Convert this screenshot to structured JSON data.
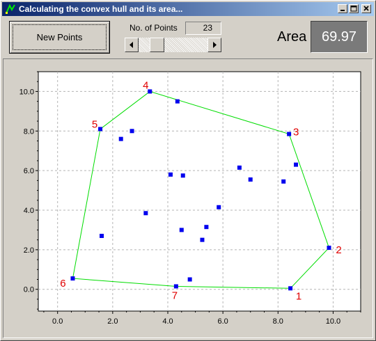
{
  "window": {
    "title": "Calculating the convex hull and its area...",
    "icons": [
      "app-icon",
      "minimize-icon",
      "maximize-icon",
      "close-icon"
    ]
  },
  "controls": {
    "new_points_label": "New Points",
    "npoints_label": "No. of Points",
    "npoints_value": "23",
    "slider_fraction": 0.2,
    "area_label": "Area",
    "area_value": "69.97"
  },
  "chart_data": {
    "type": "scatter",
    "xlim": [
      -0.7,
      11.0
    ],
    "ylim": [
      -1.1,
      11.0
    ],
    "x_ticks": [
      "0.0",
      "2.0",
      "4.0",
      "6.0",
      "8.0",
      "10.0"
    ],
    "x_tick_values": [
      0,
      2,
      4,
      6,
      8,
      10
    ],
    "y_ticks": [
      "0.0",
      "2.0",
      "4.0",
      "6.0",
      "8.0",
      "10.0"
    ],
    "y_tick_values": [
      0,
      2,
      4,
      6,
      8,
      10
    ],
    "grid": true,
    "point_color": "#0000ee",
    "hull_color": "#00dd00",
    "label_color": "#e00000",
    "points": [
      [
        8.45,
        0.05
      ],
      [
        9.85,
        2.1
      ],
      [
        8.4,
        7.85
      ],
      [
        3.35,
        10.0
      ],
      [
        1.55,
        8.1
      ],
      [
        0.55,
        0.55
      ],
      [
        4.3,
        0.15
      ],
      [
        4.35,
        9.5
      ],
      [
        2.7,
        8.0
      ],
      [
        2.3,
        7.6
      ],
      [
        4.1,
        5.8
      ],
      [
        4.55,
        5.75
      ],
      [
        6.6,
        6.15
      ],
      [
        7.0,
        5.55
      ],
      [
        8.2,
        5.45
      ],
      [
        8.65,
        6.3
      ],
      [
        5.85,
        4.15
      ],
      [
        5.4,
        3.15
      ],
      [
        4.5,
        3.0
      ],
      [
        3.2,
        3.85
      ],
      [
        1.6,
        2.7
      ],
      [
        5.25,
        2.5
      ],
      [
        4.8,
        0.5
      ]
    ],
    "hull": [
      {
        "label": "1",
        "x": 8.45,
        "y": 0.05
      },
      {
        "label": "2",
        "x": 9.85,
        "y": 2.1
      },
      {
        "label": "3",
        "x": 8.4,
        "y": 7.85
      },
      {
        "label": "4",
        "x": 3.35,
        "y": 10.0
      },
      {
        "label": "5",
        "x": 1.55,
        "y": 8.1
      },
      {
        "label": "6",
        "x": 0.55,
        "y": 0.55
      },
      {
        "label": "7",
        "x": 4.3,
        "y": 0.15
      }
    ]
  }
}
